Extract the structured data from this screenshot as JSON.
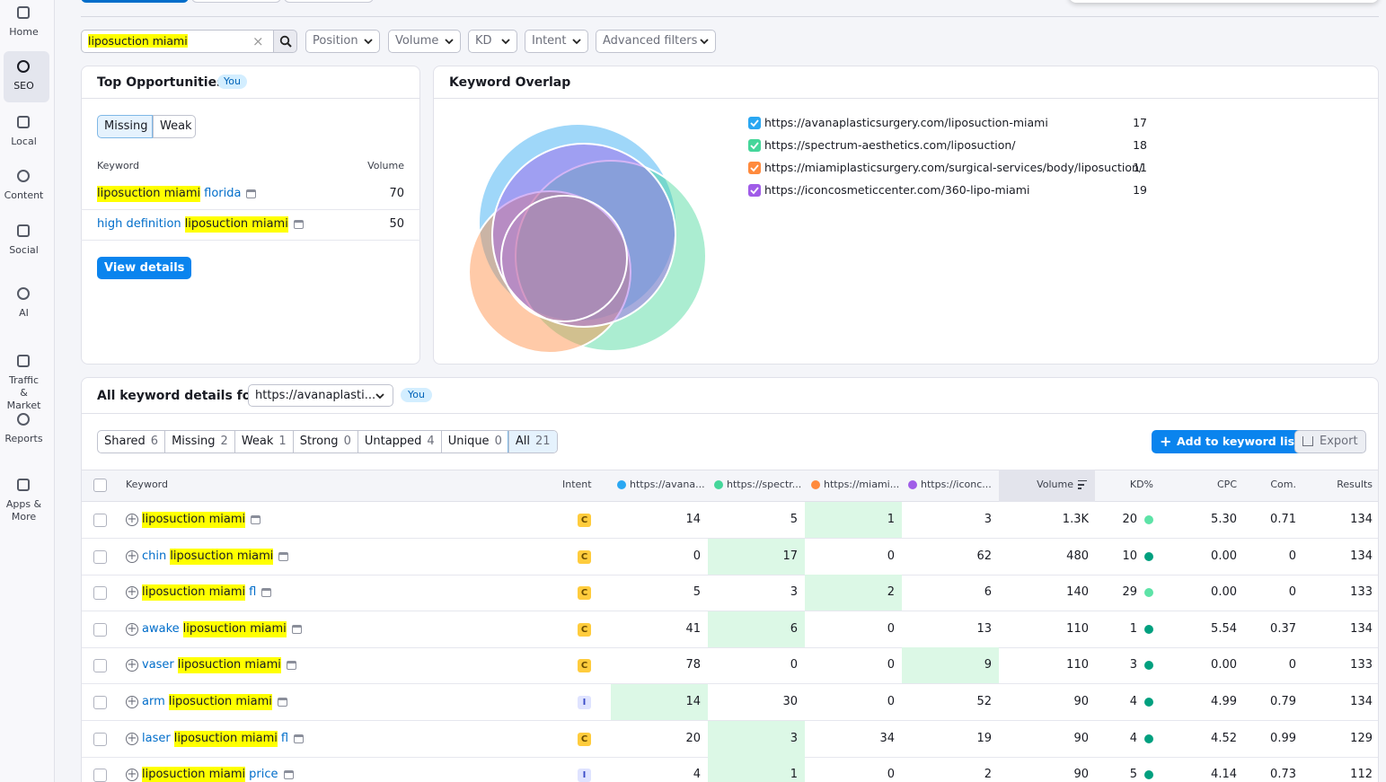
{
  "sidebar": {
    "items": [
      "Home",
      "SEO",
      "Local",
      "Content",
      "Social",
      "AI",
      "Traffic & Market",
      "Reports",
      "Apps & More"
    ],
    "active": 1
  },
  "filters": {
    "search": "liposuction miami",
    "dropdowns": [
      "Position",
      "Volume",
      "KD",
      "Intent",
      "Advanced filters"
    ]
  },
  "top_opportunities": {
    "title": "Top Opportunities",
    "badge": "You",
    "tabs": [
      "Missing",
      "Weak"
    ],
    "active_tab": 0,
    "headers": [
      "Keyword",
      "Volume"
    ],
    "rows": [
      {
        "keyword": [
          {
            "text": "liposuction miami",
            "highlight": true
          },
          {
            "text": "florida"
          }
        ],
        "volume": 70
      },
      {
        "keyword": [
          {
            "text": "high definition"
          },
          {
            "text": "liposuction miami",
            "highlight": true
          }
        ],
        "volume": 50
      }
    ],
    "button": "View details"
  },
  "keyword_overlap": {
    "title": "Keyword Overlap",
    "domains": [
      {
        "url": "https://avanaplasticsurgery.com/liposuction-miami",
        "count": 17,
        "color": "#2aa7f2"
      },
      {
        "url": "https://spectrum-aesthetics.com/liposuction/",
        "count": 18,
        "color": "#45d69a"
      },
      {
        "url": "https://miamiplasticsurgery.com/surgical-services/body/liposuction/",
        "count": 11,
        "color": "#ff8a3d"
      },
      {
        "url": "https://iconcosmeticcenter.com/360-lipo-miami",
        "count": 19,
        "color": "#a05ce8"
      }
    ]
  },
  "keyword_details": {
    "title": "All keyword details for:",
    "select": "https://avanaplasti...",
    "badge": "You",
    "tabs": [
      {
        "label": "Shared",
        "count": 6
      },
      {
        "label": "Missing",
        "count": 2
      },
      {
        "label": "Weak",
        "count": 1
      },
      {
        "label": "Strong",
        "count": 0
      },
      {
        "label": "Untapped",
        "count": 4
      },
      {
        "label": "Unique",
        "count": 0
      },
      {
        "label": "All",
        "count": 21
      }
    ],
    "active_tab": 6,
    "add_button": "Add to keyword list",
    "export_button": "Export",
    "columns": [
      "Keyword",
      "Intent",
      "https://avana...",
      "https://spectr...",
      "https://miami...",
      "https://iconc...",
      "Volume",
      "KD%",
      "CPC",
      "Com.",
      "Results"
    ],
    "rows": [
      {
        "keyword": [
          {
            "text": "liposuction miami",
            "highlight": true
          }
        ],
        "intent": "C",
        "positions": [
          14,
          5,
          1,
          3
        ],
        "best": 2,
        "volume": "1.3K",
        "kd": 20,
        "kd_color": "#5de3a7",
        "cpc": "5.30",
        "com": "0.71",
        "results": 134
      },
      {
        "keyword": [
          {
            "text": "chin"
          },
          {
            "text": "liposuction miami",
            "highlight": true
          }
        ],
        "intent": "C",
        "positions": [
          0,
          17,
          0,
          62
        ],
        "best": 1,
        "volume": 480,
        "kd": 10,
        "kd_color": "#00a07f",
        "cpc": "0.00",
        "com": 0,
        "results": 134
      },
      {
        "keyword": [
          {
            "text": "liposuction miami",
            "highlight": true
          },
          {
            "text": "fl"
          }
        ],
        "intent": "C",
        "positions": [
          5,
          3,
          2,
          6
        ],
        "best": 2,
        "volume": 140,
        "kd": 29,
        "kd_color": "#5de3a7",
        "cpc": "0.00",
        "com": 0,
        "results": 133
      },
      {
        "keyword": [
          {
            "text": "awake"
          },
          {
            "text": "liposuction miami",
            "highlight": true
          }
        ],
        "intent": "C",
        "positions": [
          41,
          6,
          0,
          13
        ],
        "best": 1,
        "volume": 110,
        "kd": 1,
        "kd_color": "#00a07f",
        "cpc": "5.54",
        "com": "0.37",
        "results": 134
      },
      {
        "keyword": [
          {
            "text": "vaser"
          },
          {
            "text": "liposuction miami",
            "highlight": true
          }
        ],
        "intent": "C",
        "positions": [
          78,
          0,
          0,
          9
        ],
        "best": 3,
        "volume": 110,
        "kd": 3,
        "kd_color": "#00a07f",
        "cpc": "0.00",
        "com": 0,
        "results": 133
      },
      {
        "keyword": [
          {
            "text": "arm"
          },
          {
            "text": "liposuction miami",
            "highlight": true
          }
        ],
        "intent": "I",
        "positions": [
          14,
          30,
          0,
          52
        ],
        "best": 0,
        "volume": 90,
        "kd": 4,
        "kd_color": "#00a07f",
        "cpc": "4.99",
        "com": "0.79",
        "results": 134
      },
      {
        "keyword": [
          {
            "text": "laser"
          },
          {
            "text": "liposuction miami",
            "highlight": true
          },
          {
            "text": "fl"
          }
        ],
        "intent": "C",
        "positions": [
          20,
          3,
          34,
          19
        ],
        "best": 1,
        "volume": 90,
        "kd": 4,
        "kd_color": "#00a07f",
        "cpc": "4.52",
        "com": "0.99",
        "results": 129
      },
      {
        "keyword": [
          {
            "text": "liposuction miami",
            "highlight": true
          },
          {
            "text": "price"
          }
        ],
        "intent": "I",
        "positions": [
          4,
          1,
          0,
          2
        ],
        "best": 1,
        "volume": 90,
        "kd": 5,
        "kd_color": "#00a07f",
        "cpc": "4.14",
        "com": "0.73",
        "results": 112
      }
    ]
  }
}
